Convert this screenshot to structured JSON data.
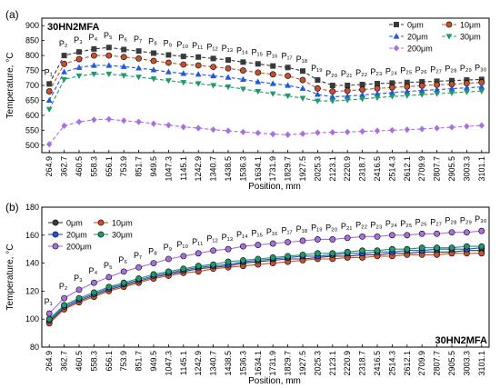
{
  "colors": {
    "0um": "#3a3a3a",
    "10um": "#c8502a",
    "20um": "#2255e0",
    "30um": "#1f9a6a",
    "200um": "#a86fe0"
  },
  "chart_data": [
    {
      "type": "line",
      "panel_label": "(a)",
      "title": "30HN2MFA",
      "xlabel": "Position, mm",
      "ylabel": "Temperature, °C",
      "ylim": [
        475,
        925
      ],
      "yticks": [
        500,
        550,
        600,
        650,
        700,
        750,
        800,
        850,
        900
      ],
      "grid": false,
      "legend_position": "top-right",
      "categories": [
        "264.9",
        "362.7",
        "460.5",
        "558.3",
        "656.1",
        "753.9",
        "851.7",
        "949.5",
        "1047.3",
        "1145.1",
        "1242.9",
        "1340.7",
        "1438.5",
        "1536.3",
        "1634.1",
        "1731.9",
        "1829.7",
        "1927.5",
        "2025.3",
        "2123.1",
        "2220.9",
        "2318.7",
        "2416.5",
        "2514.3",
        "2612.1",
        "2709.9",
        "2807.7",
        "2905.5",
        "3003.3",
        "3101.1"
      ],
      "point_labels": [
        "P₁",
        "P₂",
        "P₃",
        "P₄",
        "P₅",
        "P₆",
        "P₇",
        "P₈",
        "P₉",
        "P₁₀",
        "P₁₁",
        "P₁₂",
        "P₁₃",
        "P₁₄",
        "P₁₅",
        "P₁₆",
        "P₁₇",
        "P₁₈",
        "P₁₉",
        "P₂₀",
        "P₂₁",
        "P₂₂",
        "P₂₃",
        "P₂₄",
        "P₂₅",
        "P₂₆",
        "P₂₇",
        "P₂₈",
        "P₂₉",
        "P₃₀"
      ],
      "series": [
        {
          "name": "0μm",
          "marker": "square",
          "color_key": "0um",
          "values": [
            705,
            800,
            812,
            822,
            827,
            820,
            815,
            808,
            802,
            797,
            795,
            790,
            785,
            778,
            772,
            765,
            760,
            748,
            718,
            700,
            700,
            703,
            706,
            708,
            710,
            712,
            714,
            716,
            718,
            720
          ]
        },
        {
          "name": "10μm",
          "marker": "circle",
          "color_key": "10um",
          "values": [
            680,
            772,
            788,
            800,
            800,
            795,
            790,
            782,
            776,
            770,
            767,
            762,
            757,
            750,
            743,
            737,
            732,
            718,
            690,
            680,
            682,
            686,
            690,
            693,
            696,
            699,
            702,
            704,
            707,
            710
          ]
        },
        {
          "name": "20μm",
          "marker": "triangle-up",
          "color_key": "20um",
          "values": [
            650,
            745,
            760,
            767,
            767,
            763,
            758,
            752,
            745,
            740,
            737,
            732,
            727,
            720,
            712,
            706,
            700,
            690,
            670,
            662,
            664,
            668,
            672,
            676,
            680,
            683,
            686,
            689,
            692,
            695
          ]
        },
        {
          "name": "30μm",
          "marker": "triangle-down",
          "color_key": "30um",
          "values": [
            620,
            720,
            732,
            738,
            738,
            733,
            728,
            722,
            716,
            710,
            706,
            700,
            695,
            688,
            680,
            672,
            665,
            657,
            648,
            648,
            651,
            655,
            659,
            663,
            666,
            669,
            672,
            675,
            678,
            681
          ]
        },
        {
          "name": "200μm",
          "marker": "diamond",
          "color_key": "200um",
          "values": [
            503,
            565,
            578,
            585,
            587,
            582,
            578,
            572,
            567,
            561,
            557,
            552,
            548,
            544,
            541,
            537,
            535,
            538,
            542,
            543,
            544,
            546,
            548,
            550,
            552,
            554,
            557,
            560,
            563,
            566
          ]
        }
      ]
    },
    {
      "type": "line",
      "panel_label": "(b)",
      "title": "30HN2MFA",
      "xlabel": "Position, mm",
      "ylabel": "Temperature, °C",
      "ylim": [
        80,
        180
      ],
      "yticks": [
        80,
        100,
        120,
        140,
        160,
        180
      ],
      "grid": false,
      "legend_position": "top-left",
      "categories": [
        "264.9",
        "362.7",
        "460.5",
        "558.3",
        "656.1",
        "753.9",
        "851.7",
        "949.5",
        "1047.3",
        "1145.1",
        "1242.9",
        "1340.7",
        "1438.5",
        "1536.3",
        "1634.1",
        "1731.9",
        "1829.7",
        "1927.5",
        "2025.3",
        "2123.1",
        "2220.9",
        "2318.7",
        "2416.5",
        "2514.3",
        "2612.1",
        "2709.9",
        "2807.7",
        "2905.5",
        "3003.3",
        "3101.1"
      ],
      "point_labels": [
        "P₁",
        "P₂",
        "P₃",
        "P₄",
        "P₅",
        "P₆",
        "P₇",
        "P₈",
        "P₉",
        "P₁₀",
        "P₁₁",
        "P₁₂",
        "P₁₃",
        "P₁₄",
        "P₁₅",
        "P₁₆",
        "P₁₇",
        "P₁₈",
        "P₁₉",
        "P₂₀",
        "P₂₁",
        "P₂₂",
        "P₂₃",
        "P₂₄",
        "P₂₅",
        "P₂₆",
        "P₂₇",
        "P₂₈",
        "P₂₉",
        "P₃₀"
      ],
      "series": [
        {
          "name": "0μm",
          "marker": "circle",
          "color_key": "0um",
          "values": [
            98,
            108,
            113,
            117,
            121,
            124,
            127,
            130,
            132,
            134,
            136,
            137,
            138,
            140,
            141,
            142,
            143,
            143,
            144,
            145,
            145,
            146,
            146,
            147,
            147,
            148,
            148,
            148,
            149,
            149
          ]
        },
        {
          "name": "10μm",
          "marker": "circle",
          "color_key": "10um",
          "values": [
            97,
            107,
            112,
            116,
            120,
            123,
            126,
            129,
            131,
            133,
            134,
            136,
            137,
            138,
            139,
            140,
            141,
            142,
            143,
            143,
            144,
            144,
            145,
            145,
            146,
            146,
            146,
            147,
            147,
            147
          ]
        },
        {
          "name": "20μm",
          "marker": "circle",
          "color_key": "20um",
          "values": [
            99,
            109,
            114,
            118,
            122,
            125,
            128,
            131,
            133,
            135,
            137,
            138,
            139,
            141,
            142,
            143,
            144,
            145,
            145,
            146,
            147,
            147,
            148,
            148,
            149,
            149,
            150,
            150,
            150,
            151
          ]
        },
        {
          "name": "30μm",
          "marker": "circle",
          "color_key": "30um",
          "values": [
            100,
            110,
            115,
            119,
            123,
            126,
            129,
            132,
            134,
            136,
            138,
            139,
            141,
            142,
            143,
            144,
            145,
            146,
            147,
            147,
            148,
            149,
            149,
            150,
            150,
            151,
            151,
            151,
            152,
            152
          ]
        },
        {
          "name": "200μm",
          "marker": "circle",
          "color_key": "200um",
          "values": [
            104,
            115,
            121,
            126,
            130,
            134,
            137,
            140,
            143,
            145,
            147,
            149,
            150,
            152,
            153,
            154,
            155,
            156,
            157,
            157,
            158,
            159,
            159,
            160,
            160,
            161,
            161,
            162,
            162,
            163
          ]
        }
      ]
    }
  ]
}
